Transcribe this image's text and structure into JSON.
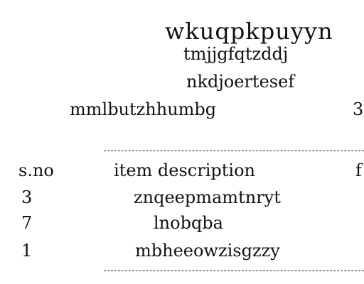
{
  "header": {
    "title": "wkuqpkpuyyn",
    "line1": "tmjjgfqtzddj",
    "line2": "nkdjoertesef",
    "line3": "mmlbutzhhumbg",
    "line3_right": "3"
  },
  "table": {
    "divider_top": "------------------------------------------------------------",
    "divider_bottom": "------------------------------------------------------------",
    "columns": [
      "s.no",
      "item description",
      "f"
    ],
    "rows": [
      {
        "no": "3",
        "description": "znqeepmamtnryt"
      },
      {
        "no": "7",
        "description": "lnobqba"
      },
      {
        "no": "1",
        "description": "mbheeowzisgzzy"
      }
    ]
  }
}
